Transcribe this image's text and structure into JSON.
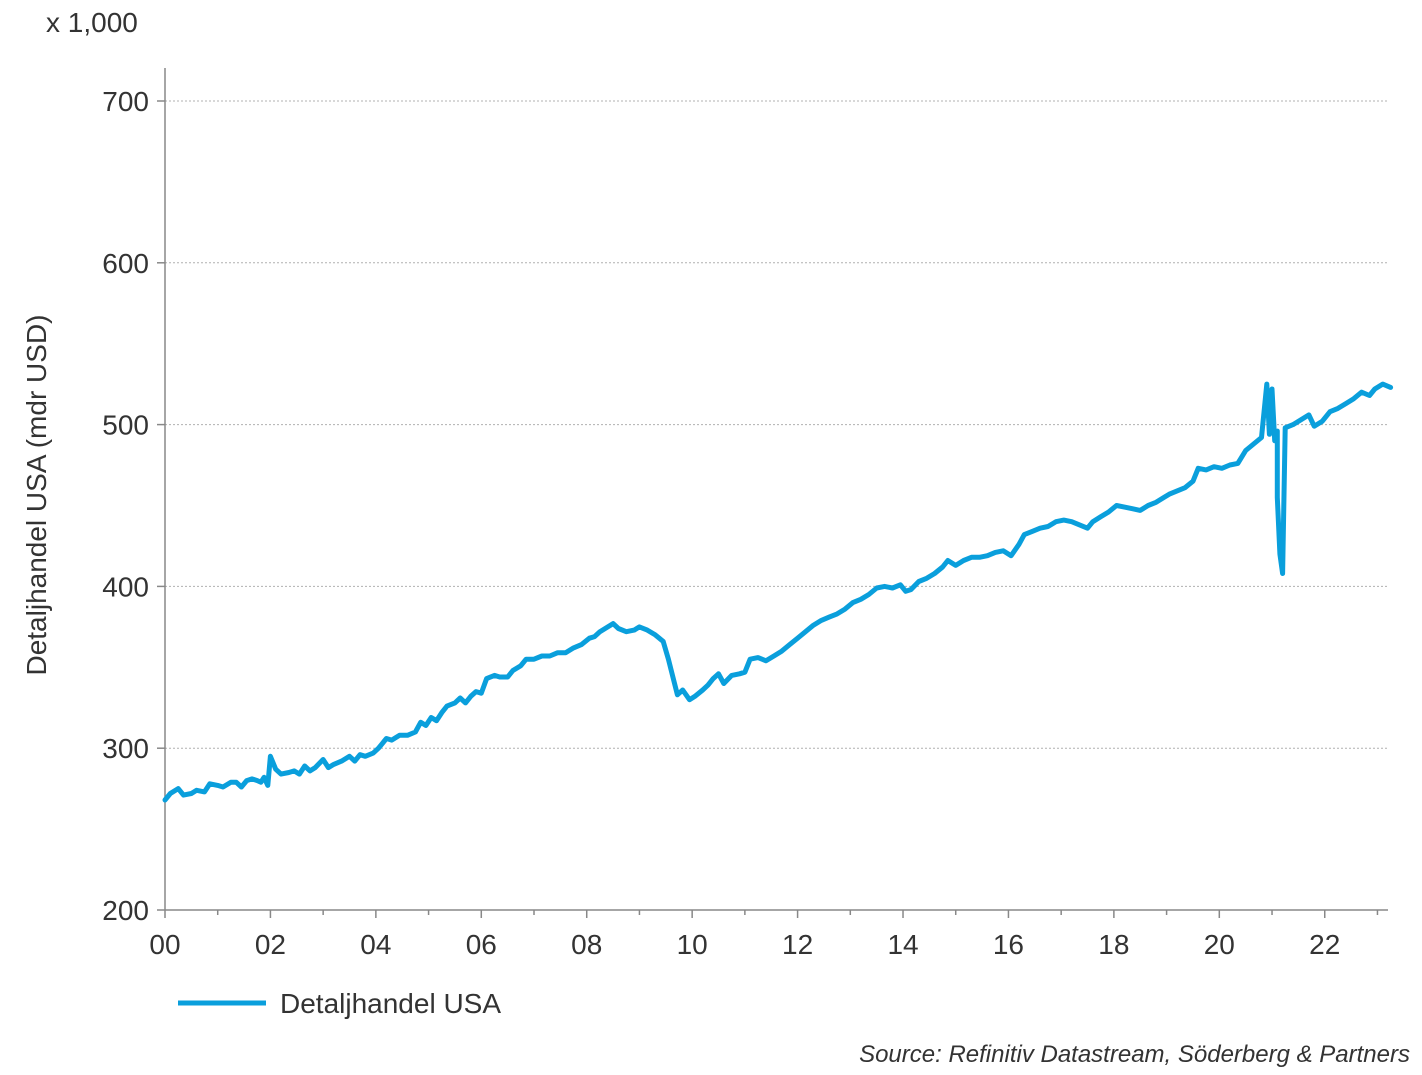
{
  "chart_data": {
    "type": "line",
    "ylabel": "Detaljhandel USA (mdr USD)",
    "y_multiplier": "x 1,000",
    "ylim": [
      200,
      700
    ],
    "y_ticks": [
      "200",
      "300",
      "400",
      "500",
      "600",
      "700"
    ],
    "xlim": [
      2000,
      2023.2
    ],
    "x_ticks": [
      "00",
      "02",
      "04",
      "06",
      "08",
      "10",
      "12",
      "14",
      "16",
      "18",
      "20",
      "22"
    ],
    "grid": "horizontal",
    "legend_position": "bottom-left",
    "source": "Source: Refinitiv Datastream, Söderberg & Partners",
    "series": [
      {
        "name": "Detaljhandel USA",
        "color": "#0a9fdc",
        "points": [
          [
            2000.0,
            268
          ],
          [
            2000.1,
            272
          ],
          [
            2000.25,
            275
          ],
          [
            2000.35,
            271
          ],
          [
            2000.5,
            272
          ],
          [
            2000.6,
            274
          ],
          [
            2000.75,
            273
          ],
          [
            2000.85,
            278
          ],
          [
            2001.0,
            277
          ],
          [
            2001.1,
            276
          ],
          [
            2001.25,
            279
          ],
          [
            2001.35,
            279
          ],
          [
            2001.45,
            276
          ],
          [
            2001.55,
            280
          ],
          [
            2001.65,
            281
          ],
          [
            2001.75,
            280
          ],
          [
            2001.82,
            279
          ],
          [
            2001.88,
            282
          ],
          [
            2001.95,
            277
          ],
          [
            2002.0,
            295
          ],
          [
            2002.1,
            287
          ],
          [
            2002.2,
            284
          ],
          [
            2002.35,
            285
          ],
          [
            2002.45,
            286
          ],
          [
            2002.55,
            284
          ],
          [
            2002.65,
            289
          ],
          [
            2002.75,
            286
          ],
          [
            2002.85,
            288
          ],
          [
            2003.0,
            293
          ],
          [
            2003.1,
            288
          ],
          [
            2003.2,
            290
          ],
          [
            2003.35,
            292
          ],
          [
            2003.5,
            295
          ],
          [
            2003.6,
            292
          ],
          [
            2003.7,
            296
          ],
          [
            2003.8,
            295
          ],
          [
            2003.95,
            297
          ],
          [
            2004.05,
            300
          ],
          [
            2004.2,
            306
          ],
          [
            2004.3,
            305
          ],
          [
            2004.45,
            308
          ],
          [
            2004.6,
            308
          ],
          [
            2004.75,
            310
          ],
          [
            2004.85,
            316
          ],
          [
            2004.95,
            314
          ],
          [
            2005.05,
            319
          ],
          [
            2005.15,
            317
          ],
          [
            2005.25,
            322
          ],
          [
            2005.35,
            326
          ],
          [
            2005.5,
            328
          ],
          [
            2005.6,
            331
          ],
          [
            2005.7,
            328
          ],
          [
            2005.8,
            332
          ],
          [
            2005.9,
            335
          ],
          [
            2006.0,
            334
          ],
          [
            2006.1,
            343
          ],
          [
            2006.25,
            345
          ],
          [
            2006.35,
            344
          ],
          [
            2006.5,
            344
          ],
          [
            2006.6,
            348
          ],
          [
            2006.75,
            351
          ],
          [
            2006.85,
            355
          ],
          [
            2007.0,
            355
          ],
          [
            2007.15,
            357
          ],
          [
            2007.3,
            357
          ],
          [
            2007.45,
            359
          ],
          [
            2007.6,
            359
          ],
          [
            2007.75,
            362
          ],
          [
            2007.9,
            364
          ],
          [
            2008.05,
            368
          ],
          [
            2008.15,
            369
          ],
          [
            2008.25,
            372
          ],
          [
            2008.4,
            375
          ],
          [
            2008.5,
            377
          ],
          [
            2008.6,
            374
          ],
          [
            2008.75,
            372
          ],
          [
            2008.9,
            373
          ],
          [
            2009.0,
            375
          ],
          [
            2009.15,
            373
          ],
          [
            2009.3,
            370
          ],
          [
            2009.45,
            366
          ],
          [
            2009.55,
            355
          ],
          [
            2009.65,
            342
          ],
          [
            2009.72,
            333
          ],
          [
            2009.82,
            336
          ],
          [
            2009.95,
            330
          ],
          [
            2010.05,
            332
          ],
          [
            2010.2,
            336
          ],
          [
            2010.3,
            339
          ],
          [
            2010.4,
            343
          ],
          [
            2010.5,
            346
          ],
          [
            2010.6,
            340
          ],
          [
            2010.75,
            345
          ],
          [
            2010.9,
            346
          ],
          [
            2011.0,
            347
          ],
          [
            2011.1,
            355
          ],
          [
            2011.25,
            356
          ],
          [
            2011.4,
            354
          ],
          [
            2011.55,
            357
          ],
          [
            2011.7,
            360
          ],
          [
            2011.85,
            364
          ],
          [
            2012.0,
            368
          ],
          [
            2012.15,
            372
          ],
          [
            2012.3,
            376
          ],
          [
            2012.45,
            379
          ],
          [
            2012.6,
            381
          ],
          [
            2012.75,
            383
          ],
          [
            2012.9,
            386
          ],
          [
            2013.05,
            390
          ],
          [
            2013.2,
            392
          ],
          [
            2013.35,
            395
          ],
          [
            2013.5,
            399
          ],
          [
            2013.65,
            400
          ],
          [
            2013.8,
            399
          ],
          [
            2013.95,
            401
          ],
          [
            2014.05,
            397
          ],
          [
            2014.15,
            398
          ],
          [
            2014.3,
            403
          ],
          [
            2014.45,
            405
          ],
          [
            2014.6,
            408
          ],
          [
            2014.75,
            412
          ],
          [
            2014.85,
            416
          ],
          [
            2015.0,
            413
          ],
          [
            2015.15,
            416
          ],
          [
            2015.3,
            418
          ],
          [
            2015.45,
            418
          ],
          [
            2015.6,
            419
          ],
          [
            2015.75,
            421
          ],
          [
            2015.9,
            422
          ],
          [
            2016.05,
            419
          ],
          [
            2016.2,
            426
          ],
          [
            2016.3,
            432
          ],
          [
            2016.45,
            434
          ],
          [
            2016.6,
            436
          ],
          [
            2016.75,
            437
          ],
          [
            2016.9,
            440
          ],
          [
            2017.05,
            441
          ],
          [
            2017.2,
            440
          ],
          [
            2017.35,
            438
          ],
          [
            2017.5,
            436
          ],
          [
            2017.6,
            440
          ],
          [
            2017.75,
            443
          ],
          [
            2017.9,
            446
          ],
          [
            2018.05,
            450
          ],
          [
            2018.2,
            449
          ],
          [
            2018.35,
            448
          ],
          [
            2018.5,
            447
          ],
          [
            2018.65,
            450
          ],
          [
            2018.8,
            452
          ],
          [
            2018.95,
            455
          ],
          [
            2019.05,
            457
          ],
          [
            2019.2,
            459
          ],
          [
            2019.35,
            461
          ],
          [
            2019.5,
            465
          ],
          [
            2019.6,
            473
          ],
          [
            2019.75,
            472
          ],
          [
            2019.9,
            474
          ],
          [
            2020.05,
            473
          ],
          [
            2020.2,
            475
          ],
          [
            2020.35,
            476
          ],
          [
            2020.5,
            484
          ],
          [
            2020.65,
            488
          ],
          [
            2020.8,
            492
          ],
          [
            2020.95,
            494
          ],
          [
            2021.1,
            496
          ],
          [
            2021.25,
            498
          ],
          [
            2021.4,
            500
          ],
          [
            2021.55,
            503
          ],
          [
            2021.7,
            506
          ],
          [
            2021.8,
            499
          ],
          [
            2021.95,
            502
          ],
          [
            2022.1,
            508
          ],
          [
            2022.25,
            510
          ],
          [
            2022.4,
            513
          ],
          [
            2022.55,
            516
          ],
          [
            2022.7,
            520
          ],
          [
            2022.85,
            518
          ],
          [
            2022.95,
            522
          ],
          [
            2023.1,
            525
          ],
          [
            2023.25,
            523
          ],
          [
            2020.9,
            525
          ],
          [
            2021.0,
            522
          ],
          [
            2021.05,
            490
          ],
          [
            2021.1,
            455
          ],
          [
            2021.15,
            420
          ],
          [
            2021.2,
            408
          ]
        ]
      }
    ]
  }
}
